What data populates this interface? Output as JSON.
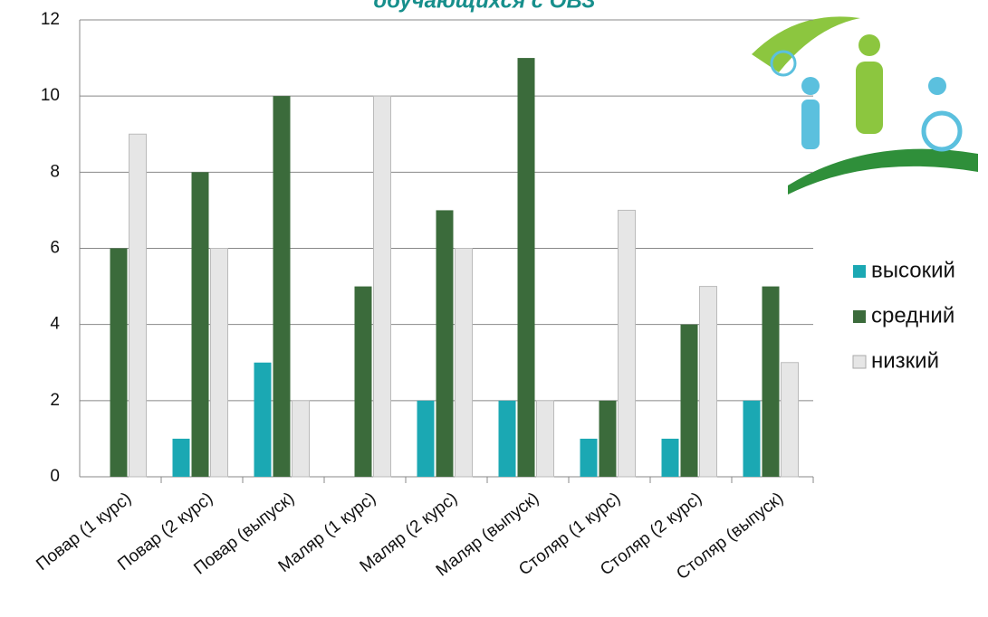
{
  "chart_data": {
    "type": "bar",
    "title": "обучающихся с ОВЗ",
    "categories": [
      "Повар (1 курс)",
      "Повар (2 курс)",
      "Повар (выпуск)",
      "Маляр (1 курс)",
      "Маляр (2 курс)",
      "Маляр (выпуск)",
      "Столяр (1 курс)",
      "Столяр (2 курс)",
      "Столяр (выпуск)"
    ],
    "series": [
      {
        "name": "высокий",
        "color": "#1ba8b3",
        "values": [
          0,
          1,
          3,
          0,
          2,
          2,
          1,
          1,
          2
        ]
      },
      {
        "name": "средний",
        "color": "#3b6b3b",
        "values": [
          6,
          8,
          10,
          5,
          7,
          11,
          2,
          4,
          5
        ]
      },
      {
        "name": "низкий",
        "color": "#e6e6e6",
        "values": [
          9,
          6,
          2,
          10,
          6,
          2,
          7,
          5,
          3
        ]
      }
    ],
    "ylim": [
      0,
      12
    ],
    "yticks": [
      0,
      2,
      4,
      6,
      8,
      10,
      12
    ],
    "grid": true,
    "legend": "right"
  }
}
